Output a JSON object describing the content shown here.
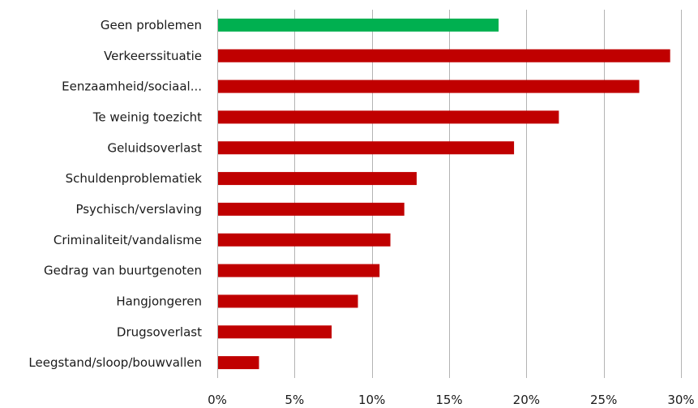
{
  "chart_data": {
    "type": "bar",
    "orientation": "horizontal",
    "title": "",
    "xlabel": "",
    "ylabel": "",
    "categories": [
      "Geen problemen",
      "Verkeerssituatie",
      "Eenzaamheid/sociaal...",
      "Te weinig toezicht",
      "Geluidsoverlast",
      "Schuldenproblematiek",
      "Psychisch/verslaving",
      "Criminaliteit/vandalisme",
      "Gedrag van buurtgenoten",
      "Hangjongeren",
      "Drugsoverlast",
      "Leegstand/sloop/bouwvallen"
    ],
    "values": [
      18.2,
      29.3,
      27.3,
      22.1,
      19.2,
      12.9,
      12.1,
      11.2,
      10.5,
      9.1,
      7.4,
      2.7
    ],
    "value_unit": "%",
    "xlim": [
      0,
      30
    ],
    "xticks": [
      0,
      5,
      10,
      15,
      20,
      25,
      30
    ],
    "xtick_labels": [
      "0%",
      "5%",
      "10%",
      "15%",
      "20%",
      "25%",
      "30%"
    ],
    "grid": "vertical",
    "legend": "none",
    "colors": {
      "highlight": "#00b050",
      "default": "#c00000",
      "grid": "#b3b3b3"
    },
    "highlight_index": 0
  }
}
